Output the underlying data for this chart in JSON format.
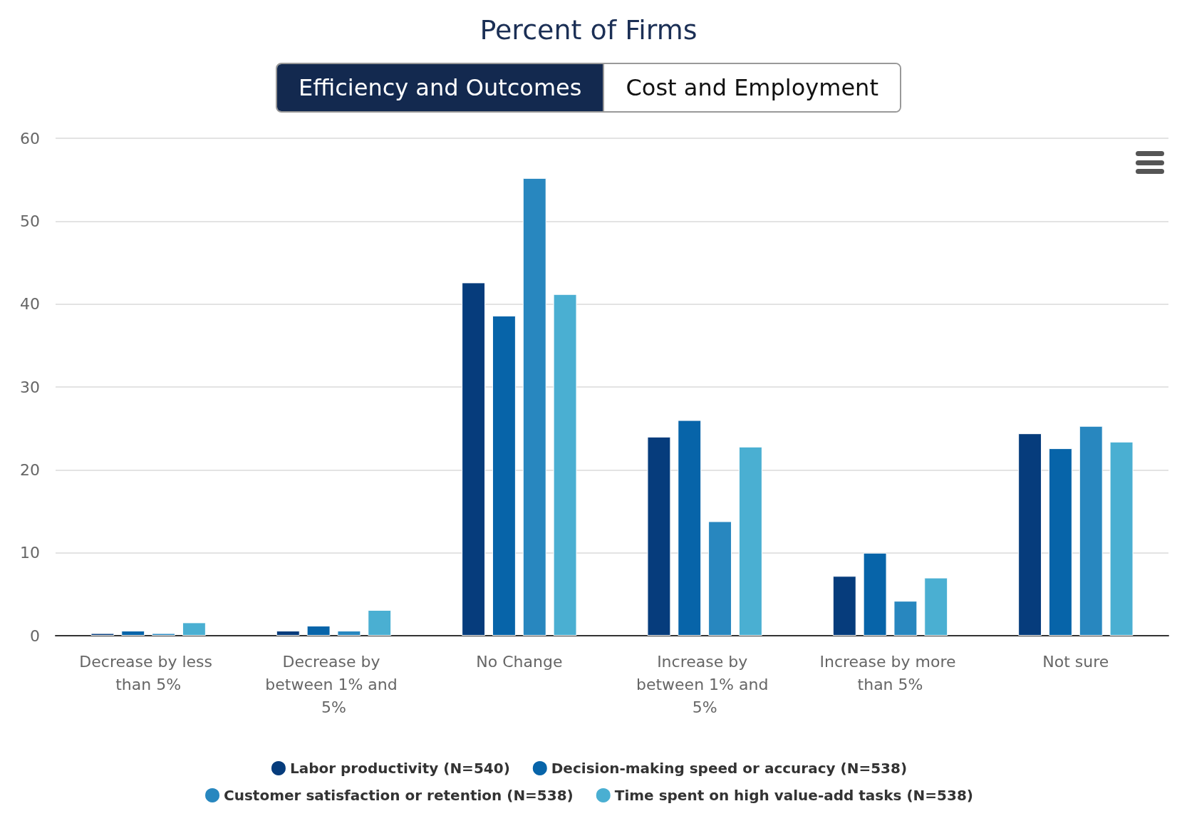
{
  "chart_data": {
    "type": "bar",
    "title": "Percent of Firms",
    "annotations": [
      "Efficiency and Outcomes",
      "Cost and Employment"
    ],
    "categories": [
      "Decrease by less than 5%",
      "Decrease by between 1% and 5%",
      "No Change",
      "Increase by between 1% and 5%",
      "Increase by more than 5%",
      "Not sure"
    ],
    "series": [
      {
        "name": "Labor productivity (N=540)",
        "color": "#063c7c",
        "values": [
          0.3,
          0.6,
          42.6,
          24.0,
          7.2,
          24.4
        ]
      },
      {
        "name": "Decision-making speed or accuracy (N=538)",
        "color": "#0764a9",
        "values": [
          0.6,
          1.2,
          38.6,
          26.0,
          10.0,
          22.6
        ]
      },
      {
        "name": "Customer satisfaction or retention (N=538)",
        "color": "#2887bf",
        "values": [
          0.3,
          0.6,
          55.2,
          13.8,
          4.2,
          25.3
        ]
      },
      {
        "name": "Time spent on high value-add tasks (N=538)",
        "color": "#4aafd2",
        "values": [
          1.6,
          3.1,
          41.2,
          22.8,
          7.0,
          23.4
        ]
      }
    ],
    "ylim": [
      0,
      60
    ],
    "yticks": [
      0,
      10,
      20,
      30,
      40,
      50,
      60
    ],
    "grid": "y",
    "legend": "bottom"
  }
}
